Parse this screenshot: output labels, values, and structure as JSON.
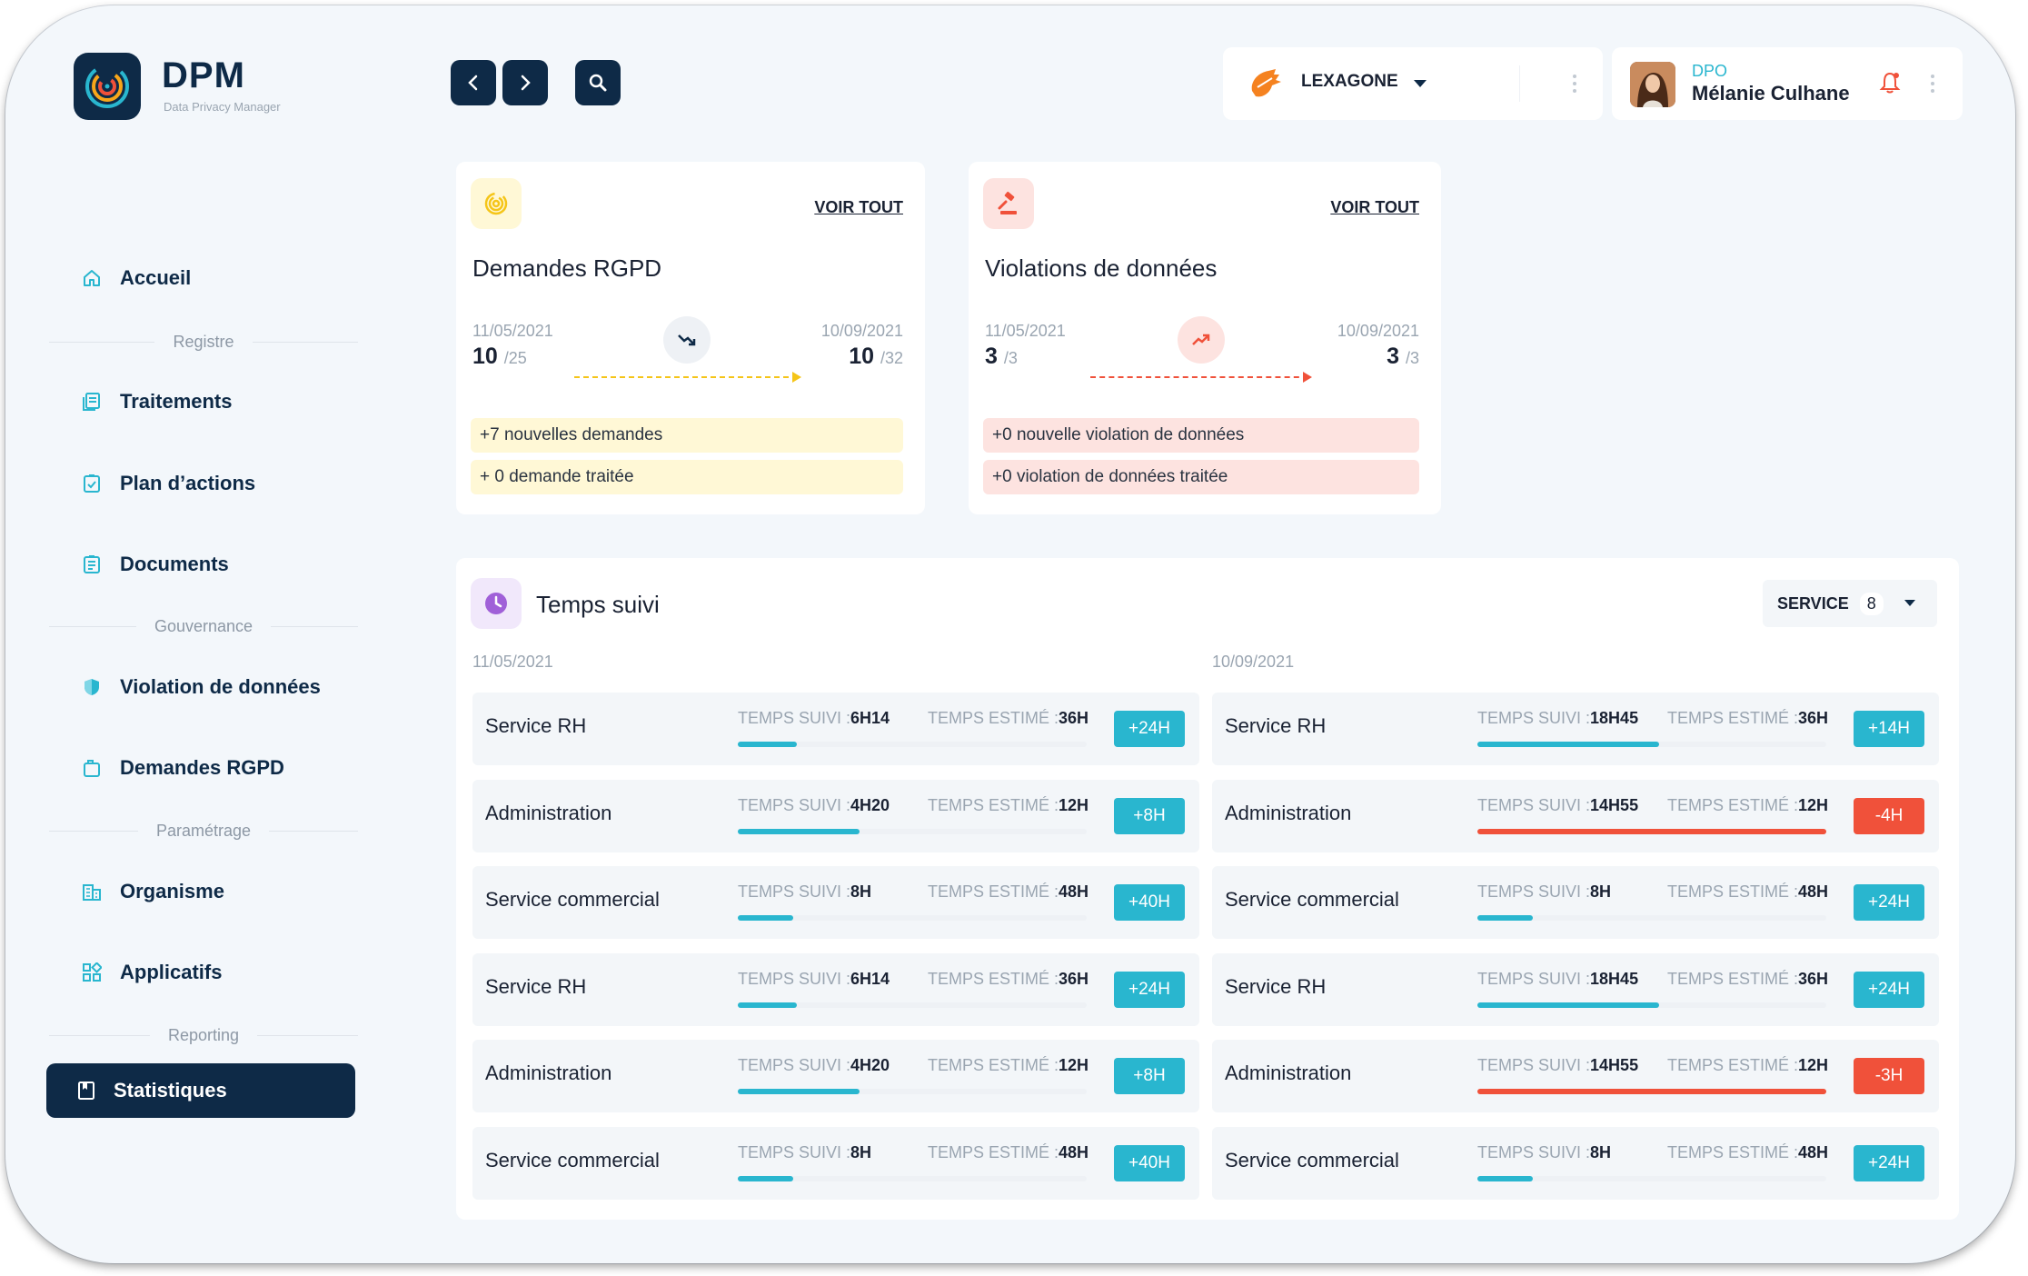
{
  "app": {
    "title": "DPM",
    "subtitle": "Data Privacy Manager"
  },
  "sidebar": {
    "items": [
      {
        "label": "Accueil",
        "icon": "home-icon"
      },
      {
        "section": "Registre"
      },
      {
        "label": "Traitements",
        "icon": "list-icon"
      },
      {
        "label": "Plan d’actions",
        "icon": "checklist-icon"
      },
      {
        "label": "Documents",
        "icon": "document-icon"
      },
      {
        "section": "Gouvernance"
      },
      {
        "label": "Violation de données",
        "icon": "shield-icon"
      },
      {
        "label": "Demandes RGPD",
        "icon": "folder-icon"
      },
      {
        "section": "Paramétrage"
      },
      {
        "label": "Organisme",
        "icon": "building-icon"
      },
      {
        "label": "Applicatifs",
        "icon": "apps-icon"
      },
      {
        "section": "Reporting"
      },
      {
        "label": "Statistiques",
        "icon": "book-icon",
        "active": true
      }
    ]
  },
  "topbar": {
    "organization": "LEXAGONE",
    "user": {
      "role": "DPO",
      "name": "Mélanie Culhane"
    }
  },
  "cards": [
    {
      "title": "Demandes RGPD",
      "link": "VOIR TOUT",
      "start_date": "11/05/2021",
      "end_date": "10/09/2021",
      "start_value": "10",
      "start_total": "/25",
      "end_value": "10",
      "end_total": "/32",
      "trend": "down",
      "lines": [
        "+7 nouvelles demandes",
        "+ 0 demande traitée"
      ],
      "accent": "#fff8d6"
    },
    {
      "title": "Violations de données",
      "link": "VOIR TOUT",
      "start_date": "11/05/2021",
      "end_date": "10/09/2021",
      "start_value": "3",
      "start_total": "/3",
      "end_value": "3",
      "end_total": "/3",
      "trend": "up",
      "lines": [
        "+0 nouvelle violation de données",
        "+0 violation de données traitée"
      ],
      "accent": "#fde3e0"
    }
  ],
  "temps": {
    "title": "Temps suivi",
    "filter_label": "SERVICE",
    "filter_count": "8",
    "label_suivi": "TEMPS SUIVI :",
    "label_estime": "TEMPS ESTIMÉ :",
    "columns": [
      {
        "date": "11/05/2021",
        "rows": [
          {
            "name": "Service RH",
            "suivi": "6H14",
            "estime": "36H",
            "delta": "+24H",
            "progress": 0.17,
            "status": "ok"
          },
          {
            "name": "Administration",
            "suivi": "4H20",
            "estime": "12H",
            "delta": "+8H",
            "progress": 0.35,
            "status": "ok"
          },
          {
            "name": "Service commercial",
            "suivi": "8H",
            "estime": "48H",
            "delta": "+40H",
            "progress": 0.16,
            "status": "ok"
          },
          {
            "name": "Service RH",
            "suivi": "6H14",
            "estime": "36H",
            "delta": "+24H",
            "progress": 0.17,
            "status": "ok"
          },
          {
            "name": "Administration",
            "suivi": "4H20",
            "estime": "12H",
            "delta": "+8H",
            "progress": 0.35,
            "status": "ok"
          },
          {
            "name": "Service commercial",
            "suivi": "8H",
            "estime": "48H",
            "delta": "+40H",
            "progress": 0.16,
            "status": "ok"
          }
        ]
      },
      {
        "date": "10/09/2021",
        "rows": [
          {
            "name": "Service RH",
            "suivi": "18H45",
            "estime": "36H",
            "delta": "+14H",
            "progress": 0.52,
            "status": "ok"
          },
          {
            "name": "Administration",
            "suivi": "14H55",
            "estime": "12H",
            "delta": "-4H",
            "progress": 1.0,
            "status": "over"
          },
          {
            "name": "Service commercial",
            "suivi": "8H",
            "estime": "48H",
            "delta": "+24H",
            "progress": 0.16,
            "status": "ok"
          },
          {
            "name": "Service RH",
            "suivi": "18H45",
            "estime": "36H",
            "delta": "+24H",
            "progress": 0.52,
            "status": "ok"
          },
          {
            "name": "Administration",
            "suivi": "14H55",
            "estime": "12H",
            "delta": "-3H",
            "progress": 1.0,
            "status": "over"
          },
          {
            "name": "Service commercial",
            "suivi": "8H",
            "estime": "48H",
            "delta": "+24H",
            "progress": 0.16,
            "status": "ok"
          }
        ]
      }
    ]
  },
  "colors": {
    "primary": "#0e2a47",
    "ok": "#29b6cf",
    "over": "#f0513a",
    "sidebar_icon": "#29b6cf"
  }
}
